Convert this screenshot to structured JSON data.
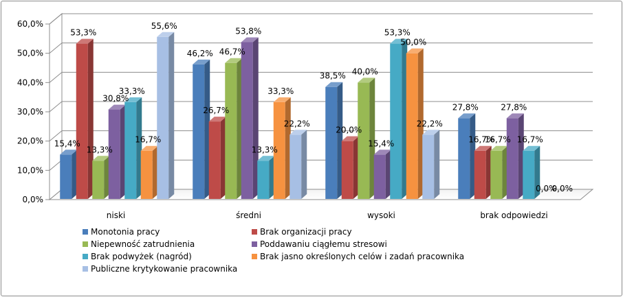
{
  "chart_data": {
    "type": "bar",
    "title": "",
    "xlabel": "",
    "ylabel": "",
    "ylim": [
      0,
      60
    ],
    "yticks": [
      "0,0%",
      "10,0%",
      "20,0%",
      "30,0%",
      "40,0%",
      "50,0%",
      "60,0%"
    ],
    "grid": true,
    "legend_position": "bottom",
    "categories": [
      "niski",
      "średni",
      "wysoki",
      "brak odpowiedzi"
    ],
    "series": [
      {
        "name": "Monotonia pracy",
        "color": "#4a7ebb",
        "values": [
          15.4,
          46.2,
          38.5,
          27.8
        ],
        "labels": [
          "15,4%",
          "46,2%",
          "38,5%",
          "27,8%"
        ]
      },
      {
        "name": "Brak organizacji pracy",
        "color": "#be4b48",
        "values": [
          53.3,
          26.7,
          20.0,
          16.7
        ],
        "labels": [
          "53,3%",
          "26,7%",
          "20,0%",
          "16,7%"
        ]
      },
      {
        "name": "Niepewność zatrudnienia",
        "color": "#98b954",
        "values": [
          13.3,
          46.7,
          40.0,
          16.7
        ],
        "labels": [
          "13,3%",
          "46,7%",
          "40,0%",
          "16,7%"
        ]
      },
      {
        "name": "Poddawaniu ciągłemu stresowi",
        "color": "#7d60a0",
        "values": [
          30.8,
          53.8,
          15.4,
          27.8
        ],
        "labels": [
          "30,8%",
          "53,8%",
          "15,4%",
          "27,8%"
        ]
      },
      {
        "name": "Brak podwyżek (nagród)",
        "color": "#46aac5",
        "values": [
          33.3,
          13.3,
          53.3,
          16.7
        ],
        "labels": [
          "33,3%",
          "13,3%",
          "53,3%",
          "16,7%"
        ]
      },
      {
        "name": "Brak jasno określonych celów i zadań pracownika",
        "color": "#f69240",
        "values": [
          16.7,
          33.3,
          50.0,
          0.0
        ],
        "labels": [
          "16,7%",
          "33,3%",
          "50,0%",
          "0,0%"
        ]
      },
      {
        "name": "Publiczne krytykowanie pracownika",
        "color": "#a7bfe4",
        "values": [
          55.6,
          22.2,
          22.2,
          0.0
        ],
        "labels": [
          "55,6%",
          "22,2%",
          "22,2%",
          "0,0%"
        ]
      }
    ]
  }
}
